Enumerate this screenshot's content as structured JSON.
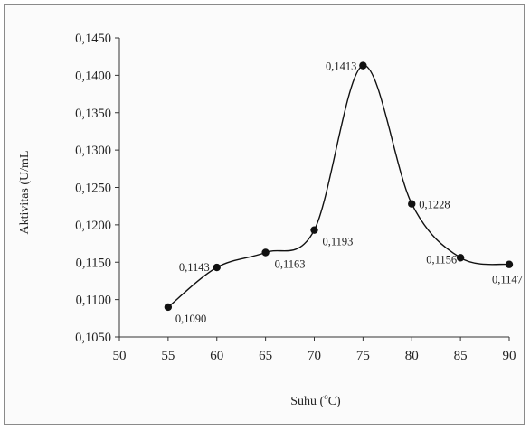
{
  "chart_data": {
    "type": "line",
    "title": "",
    "xlabel_prefix": "Suhu (",
    "xlabel_sup": "o",
    "xlabel_suffix": "C)",
    "ylabel": "Aktivitas (U/mL",
    "x_ticks": [
      50,
      55,
      60,
      65,
      70,
      75,
      80,
      85,
      90
    ],
    "y_ticks": [
      "0,1050",
      "0,1100",
      "0,1150",
      "0,1200",
      "0,1250",
      "0,1300",
      "0,1350",
      "0,1400",
      "0,1450"
    ],
    "xlim": [
      50,
      90
    ],
    "ylim": [
      0.105,
      0.145
    ],
    "grid": false,
    "legend": "none",
    "line_style": "smooth",
    "color": "#111111",
    "series": [
      {
        "x": [
          55,
          60,
          65,
          70,
          75,
          80,
          85,
          90
        ],
        "y": [
          0.109,
          0.1143,
          0.1163,
          0.1193,
          0.1413,
          0.1228,
          0.1156,
          0.1147
        ],
        "labels": [
          "0,1090",
          "0,1143",
          "0,1163",
          "0,1193",
          "0,1413",
          "0,1228",
          "0,1156",
          "0,1147"
        ]
      }
    ]
  }
}
